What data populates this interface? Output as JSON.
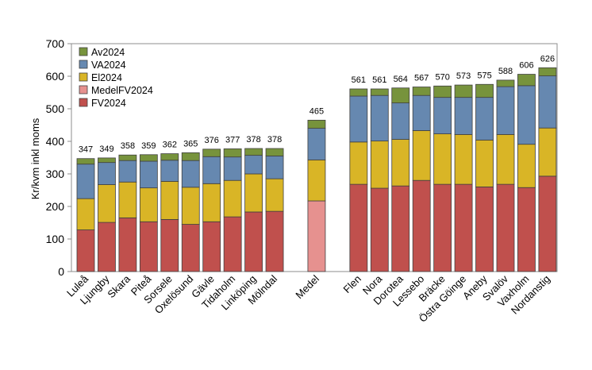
{
  "chart_data": {
    "type": "bar",
    "stacked": true,
    "title": "",
    "xlabel": "",
    "ylabel": "Kr/kvm inkl moms",
    "ylim": [
      0,
      700
    ],
    "yticks": [
      0,
      100,
      200,
      300,
      400,
      500,
      600,
      700
    ],
    "grid": false,
    "legend_position": "top-left",
    "categories": [
      "Luleå",
      "Ljungby",
      "Skara",
      "Piteå",
      "Sorsele",
      "Oxelösund",
      "Gävle",
      "Tidaholm",
      "Linköping",
      "Mölndal",
      "Medel",
      "Flen",
      "Nora",
      "Dorotea",
      "Lessebo",
      "Bräcke",
      "Östra Göinge",
      "Aneby",
      "Svalöv",
      "Vaxholm",
      "Nordanstig"
    ],
    "gaps_after": [
      "Mölndal",
      "Medel"
    ],
    "series": [
      {
        "name": "FV2024",
        "color": "#c0504d",
        "values": [
          128,
          151,
          165,
          153,
          160,
          145,
          153,
          168,
          183,
          185,
          null,
          268,
          256,
          263,
          280,
          268,
          268,
          260,
          268,
          258,
          293
        ]
      },
      {
        "name": "MedelFV2024",
        "color": "#e6918f",
        "values": [
          null,
          null,
          null,
          null,
          null,
          null,
          null,
          null,
          null,
          null,
          217,
          null,
          null,
          null,
          null,
          null,
          null,
          null,
          null,
          null,
          null
        ]
      },
      {
        "name": "El2024",
        "color": "#d9b526",
        "values": [
          96,
          116,
          110,
          104,
          117,
          114,
          117,
          112,
          117,
          100,
          126,
          130,
          145,
          143,
          153,
          155,
          153,
          144,
          153,
          133,
          148
        ]
      },
      {
        "name": "VA2024",
        "color": "#6688b0",
        "values": [
          106,
          68,
          66,
          82,
          65,
          82,
          83,
          72,
          57,
          70,
          97,
          141,
          140,
          112,
          108,
          112,
          114,
          131,
          147,
          180,
          160
        ]
      },
      {
        "name": "Av2024",
        "color": "#77933c",
        "values": [
          17,
          14,
          17,
          20,
          20,
          24,
          23,
          25,
          21,
          23,
          25,
          22,
          20,
          46,
          26,
          35,
          38,
          40,
          20,
          35,
          25
        ]
      }
    ],
    "totals": [
      347,
      349,
      358,
      359,
      362,
      365,
      376,
      377,
      378,
      378,
      465,
      561,
      561,
      564,
      567,
      570,
      573,
      575,
      588,
      606,
      626
    ],
    "legend_order": [
      "Av2024",
      "VA2024",
      "El2024",
      "MedelFV2024",
      "FV2024"
    ]
  }
}
